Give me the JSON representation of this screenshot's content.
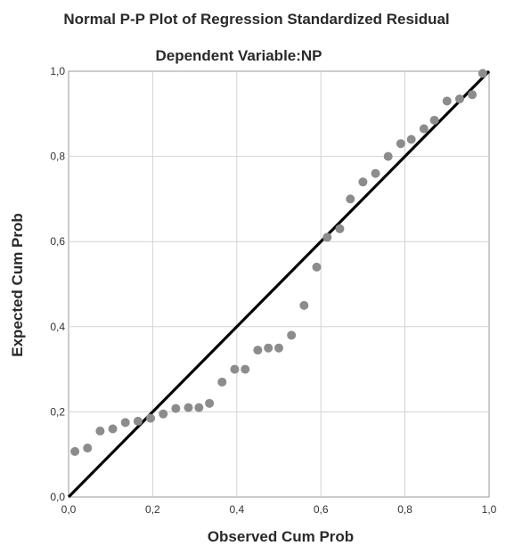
{
  "chart_data": {
    "type": "scatter",
    "title": "Normal P-P Plot of Regression Standardized Residual",
    "subtitle": "Dependent Variable:NP",
    "xlabel": "Observed Cum Prob",
    "ylabel": "Expected Cum Prob",
    "xlim": [
      0,
      1
    ],
    "ylim": [
      0,
      1
    ],
    "x_ticks": [
      "0,0",
      "0,2",
      "0,4",
      "0,6",
      "0,8",
      "1,0"
    ],
    "y_ticks": [
      "0,0",
      "0,2",
      "0,4",
      "0,6",
      "0,8",
      "1,0"
    ],
    "grid": true,
    "reference_line": [
      [
        0,
        0
      ],
      [
        1,
        1
      ]
    ],
    "points": {
      "x": [
        0.015,
        0.045,
        0.075,
        0.105,
        0.135,
        0.165,
        0.195,
        0.225,
        0.255,
        0.285,
        0.31,
        0.335,
        0.365,
        0.395,
        0.42,
        0.45,
        0.475,
        0.5,
        0.53,
        0.56,
        0.59,
        0.615,
        0.645,
        0.67,
        0.7,
        0.73,
        0.76,
        0.79,
        0.815,
        0.845,
        0.87,
        0.9,
        0.93,
        0.96,
        0.985
      ],
      "y": [
        0.107,
        0.115,
        0.155,
        0.16,
        0.175,
        0.178,
        0.185,
        0.195,
        0.208,
        0.21,
        0.21,
        0.22,
        0.27,
        0.3,
        0.3,
        0.345,
        0.35,
        0.35,
        0.38,
        0.45,
        0.54,
        0.61,
        0.63,
        0.7,
        0.74,
        0.76,
        0.8,
        0.83,
        0.84,
        0.865,
        0.885,
        0.93,
        0.935,
        0.945,
        0.995
      ]
    },
    "point_color": "#8c8c8c",
    "line_color": "#000000",
    "grid_color": "#d3d3d3"
  }
}
